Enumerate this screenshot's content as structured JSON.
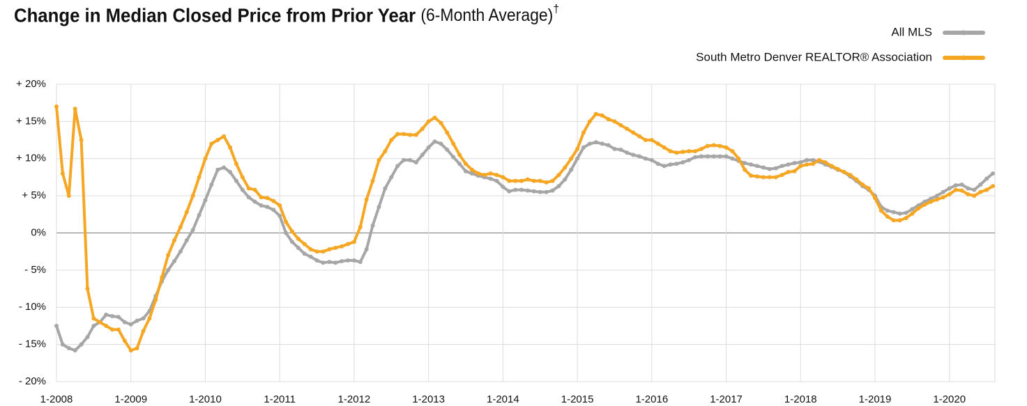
{
  "chart_data": {
    "type": "line",
    "title": "Change in Median Closed Price from Prior Year",
    "subtitle": "(6-Month Average)",
    "title_note": "†",
    "categories": [
      "1-2008",
      null,
      null,
      null,
      null,
      null,
      null,
      null,
      null,
      null,
      null,
      null,
      "1-2009",
      null,
      null,
      null,
      null,
      null,
      null,
      null,
      null,
      null,
      null,
      null,
      "1-2010",
      null,
      null,
      null,
      null,
      null,
      null,
      null,
      null,
      null,
      null,
      null,
      "1-2011",
      null,
      null,
      null,
      null,
      null,
      null,
      null,
      null,
      null,
      null,
      null,
      "1-2012",
      null,
      null,
      null,
      null,
      null,
      null,
      null,
      null,
      null,
      null,
      null,
      "1-2013",
      null,
      null,
      null,
      null,
      null,
      null,
      null,
      null,
      null,
      null,
      null,
      "1-2014",
      null,
      null,
      null,
      null,
      null,
      null,
      null,
      null,
      null,
      null,
      null,
      "1-2015",
      null,
      null,
      null,
      null,
      null,
      null,
      null,
      null,
      null,
      null,
      null,
      "1-2016",
      null,
      null,
      null,
      null,
      null,
      null,
      null,
      null,
      null,
      null,
      null,
      "1-2017",
      null,
      null,
      null,
      null,
      null,
      null,
      null,
      null,
      null,
      null,
      null,
      "1-2018",
      null,
      null,
      null,
      null,
      null,
      null,
      null,
      null,
      null,
      null,
      null,
      "1-2019",
      null,
      null,
      null,
      null,
      null,
      null,
      null,
      null,
      null,
      null,
      null,
      "1-2020",
      null,
      null,
      null,
      null,
      null,
      null,
      null
    ],
    "series": [
      {
        "name": "All MLS",
        "color": "#a6a6a6",
        "values": [
          -12.5,
          -15,
          -15.5,
          -15.8,
          -15,
          -14,
          -12.5,
          -12,
          -11,
          -11.2,
          -11.3,
          -12,
          -12.3,
          -11.8,
          -11.5,
          -10.5,
          -8.5,
          -6.5,
          -5,
          -3.8,
          -2.5,
          -1,
          0.4,
          2.4,
          4.4,
          6.5,
          8.5,
          8.8,
          8.2,
          7,
          5.8,
          4.8,
          4.2,
          3.7,
          3.5,
          3.1,
          2.3,
          0,
          -1.2,
          -2,
          -2.8,
          -3.2,
          -3.7,
          -4,
          -3.9,
          -4,
          -3.8,
          -3.7,
          -3.7,
          -3.9,
          -2.2,
          1,
          3.5,
          6,
          7.5,
          9,
          9.8,
          9.8,
          9.5,
          10.5,
          11.5,
          12.3,
          12,
          11.2,
          10.2,
          9.3,
          8.3,
          8,
          7.7,
          7.5,
          7.3,
          7,
          6.2,
          5.6,
          5.8,
          5.8,
          5.7,
          5.6,
          5.5,
          5.5,
          5.7,
          6.3,
          7.2,
          8.5,
          10,
          11.5,
          12,
          12.2,
          12,
          11.8,
          11.3,
          11.2,
          10.8,
          10.5,
          10.3,
          10,
          9.8,
          9.3,
          9,
          9.2,
          9.3,
          9.5,
          9.8,
          10.2,
          10.3,
          10.3,
          10.3,
          10.3,
          10.3,
          10,
          9.7,
          9.4,
          9.2,
          9,
          8.8,
          8.6,
          8.7,
          9,
          9.2,
          9.4,
          9.5,
          9.8,
          9.8,
          9.6,
          9.2,
          8.9,
          8.5,
          8.2,
          7.6,
          7,
          6.3,
          5.8,
          5,
          3.5,
          3,
          2.8,
          2.6,
          2.7,
          3.2,
          3.7,
          4.2,
          4.6,
          5,
          5.5,
          6,
          6.4,
          6.5,
          6,
          5.8,
          6.5,
          7.3,
          8
        ]
      },
      {
        "name": "South Metro Denver REALTOR® Association",
        "color": "#f5a623",
        "values": [
          17,
          8,
          5,
          16.7,
          12.5,
          -7.5,
          -11.5,
          -12,
          -12.5,
          -13,
          -13,
          -14.5,
          -15.8,
          -15.5,
          -13.2,
          -11.5,
          -9,
          -6,
          -3,
          -1,
          0.8,
          2.8,
          5,
          7.5,
          10,
          12,
          12.5,
          13,
          11.5,
          9.3,
          7.5,
          6,
          5.8,
          4.8,
          4.7,
          4.3,
          3.7,
          1.5,
          0.2,
          -0.8,
          -1.5,
          -2.2,
          -2.5,
          -2.5,
          -2.2,
          -2,
          -1.8,
          -1.5,
          -1.2,
          0.8,
          4.5,
          7,
          9.8,
          11,
          12.5,
          13.3,
          13.3,
          13.2,
          13.2,
          14,
          15,
          15.5,
          14.8,
          13.5,
          12,
          10.5,
          9.3,
          8.5,
          8,
          7.8,
          8,
          7.8,
          7.5,
          7,
          7,
          7,
          7.2,
          7,
          7,
          6.8,
          7,
          7.8,
          8.8,
          10,
          11.3,
          13.5,
          15,
          16,
          15.8,
          15.3,
          15,
          14.5,
          14,
          13.5,
          13,
          12.5,
          12.5,
          12,
          11.5,
          11,
          10.8,
          10.9,
          11,
          11,
          11.3,
          11.7,
          11.8,
          11.7,
          11.5,
          11,
          10,
          8.5,
          7.7,
          7.6,
          7.5,
          7.5,
          7.5,
          7.8,
          8.2,
          8.3,
          9,
          9.2,
          9.3,
          9.8,
          9.5,
          9,
          8.6,
          8.2,
          7.8,
          7.2,
          6.5,
          6,
          4.7,
          3,
          2.2,
          1.7,
          1.7,
          2,
          2.6,
          3.3,
          3.8,
          4.2,
          4.5,
          4.8,
          5.2,
          5.8,
          5.7,
          5.2,
          5,
          5.5,
          5.8,
          6.3
        ]
      }
    ],
    "ylim": [
      -20,
      20
    ],
    "yticks": [
      {
        "value": -20,
        "label": "- 20%"
      },
      {
        "value": -15,
        "label": "- 15%"
      },
      {
        "value": -10,
        "label": "- 10%"
      },
      {
        "value": -5,
        "label": "- 5%"
      },
      {
        "value": 0,
        "label": "0%"
      },
      {
        "value": 5,
        "label": "+ 5%"
      },
      {
        "value": 10,
        "label": "+ 10%"
      },
      {
        "value": 15,
        "label": "+ 15%"
      },
      {
        "value": 20,
        "label": "+ 20%"
      }
    ],
    "grid": true,
    "legend": "top-right"
  }
}
